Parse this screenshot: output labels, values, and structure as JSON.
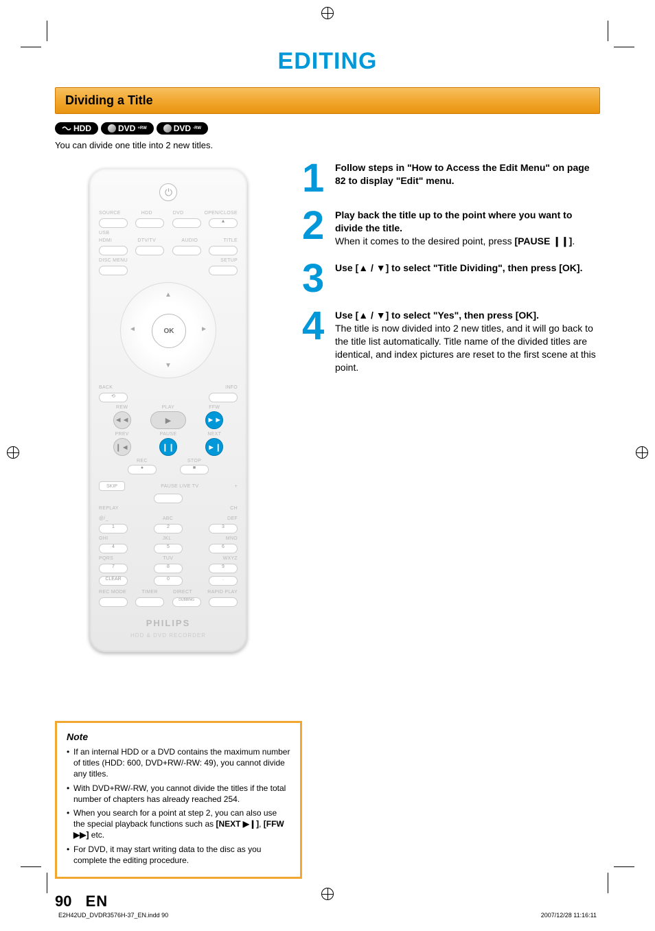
{
  "page_title": "EDITING",
  "section_title": "Dividing a Title",
  "badges": {
    "hdd": "HDD",
    "dvd_plus": "DVD",
    "dvd_plus_sub": "+RW",
    "dvd_minus": "DVD",
    "dvd_minus_sub": "-RW"
  },
  "intro_text": "You can divide one title into 2 new titles.",
  "remote": {
    "row1": [
      "SOURCE",
      "HDD",
      "DVD",
      "OPEN/CLOSE"
    ],
    "usb": "USB",
    "row2": [
      "HDMI",
      "DTV/TV",
      "AUDIO",
      "TITLE"
    ],
    "row3a": "DISC MENU",
    "row3b": "SETUP",
    "ok": "OK",
    "back": "BACK",
    "info": "INFO",
    "rew": "REW",
    "play": "PLAY",
    "ffw": "FFW",
    "prev": "PREV",
    "pause": "PAUSE",
    "next": "NEXT",
    "rec": "REC",
    "stop": "STOP",
    "skip": "SKIP",
    "pauselive": "PAUSE LIVE TV",
    "ch": "CH",
    "replay": "REPLAY",
    "num_labels": [
      "@/_",
      "ABC",
      "DEF",
      "GHI",
      "JKL",
      "MNO",
      "PQRS",
      "TUV",
      "WXYZ"
    ],
    "nums": [
      "1",
      "2",
      "3",
      "4",
      "5",
      "6",
      "7",
      "8",
      "9",
      "0"
    ],
    "clear": "CLEAR",
    "bottom": [
      "REC MODE",
      "TIMER",
      "DIRECT",
      "RAPID PLAY"
    ],
    "dubbing": "DUBBING",
    "brand": "PHILIPS",
    "subbrand": "HDD & DVD RECORDER"
  },
  "steps": [
    {
      "num": "1",
      "body": "<strong>Follow steps in \"How to Access the Edit Menu\" on page 82 to display \"Edit\" menu.</strong>"
    },
    {
      "num": "2",
      "body": "<strong>Play back the title up to the point where you want to divide the title.</strong><br>When it comes to the desired point, press <strong>[PAUSE ❙❙]</strong>."
    },
    {
      "num": "3",
      "body": "<strong>Use [▲ / ▼] to select \"Title Dividing\", then press [OK].</strong>"
    },
    {
      "num": "4",
      "body": "<strong>Use [▲ / ▼] to select \"Yes\", then press [OK].</strong><br>The title is now divided into 2 new titles, and it will go back to the title list automatically. Title name of the divided titles are identical, and index pictures are reset to the first scene at this point."
    }
  ],
  "note": {
    "title": "Note",
    "items": [
      "If an internal HDD or a DVD contains the maximum number of titles (HDD: 600, DVD+RW/-RW: 49), you cannot divide any titles.",
      "With DVD+RW/-RW, you cannot divide the titles if the total number of chapters has already reached 254.",
      "When you search for a point at step 2, you can also use the special playback functions such as <strong>[NEXT ▶❙]</strong>, <strong>[FFW ▶▶]</strong> etc.",
      "For DVD, it may start writing data to the disc as you complete the editing procedure."
    ]
  },
  "page_number": "90",
  "page_lang": "EN",
  "footer": {
    "left": "E2H42UD_DVDR3576H-37_EN.indd   90",
    "right": "2007/12/28   11:16:11"
  },
  "colors": {
    "accent_blue": "#0098d8",
    "accent_orange": "#f2a830"
  }
}
